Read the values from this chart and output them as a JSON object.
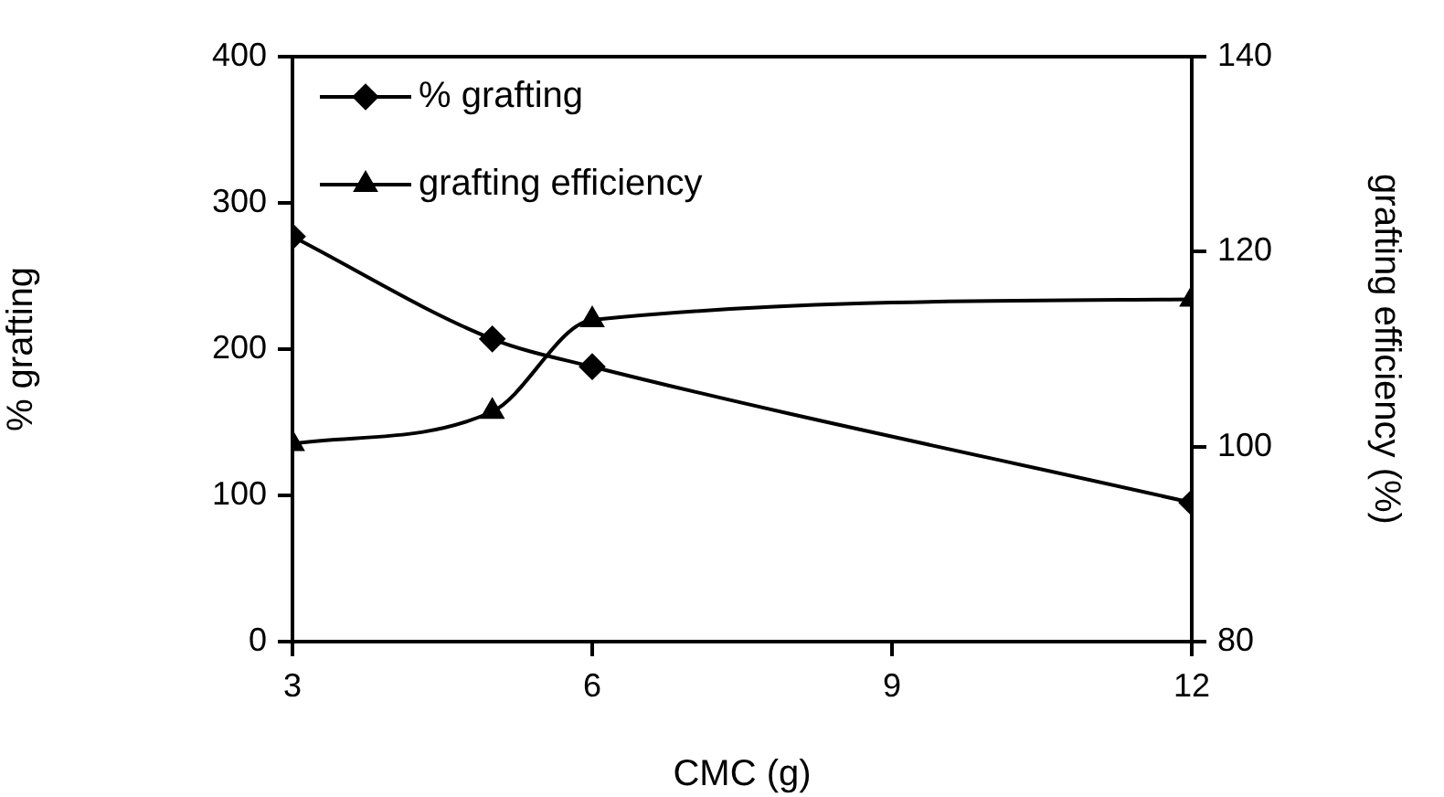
{
  "chart_data": {
    "type": "line",
    "xlabel": "CMC (g)",
    "ylabel": "% grafting",
    "y2label": "grafting efficiency (%)",
    "x": [
      3,
      5,
      6,
      12
    ],
    "series": [
      {
        "name": "% grafting",
        "color": "#000000",
        "marker": "diamond",
        "values": [
          277,
          207,
          188,
          95
        ]
      },
      {
        "name": "grafting efficiency",
        "color": "#000000",
        "marker": "triangle",
        "axis": "y2",
        "values": [
          100.3,
          103.6,
          113,
          115.1
        ]
      }
    ],
    "xlim": [
      3,
      12
    ],
    "xticks": [
      3,
      6,
      9,
      12
    ],
    "ylim": [
      0,
      400
    ],
    "yticks": [
      0,
      100,
      200,
      300,
      400
    ],
    "y2lim": [
      80,
      140
    ],
    "y2ticks": [
      80,
      100,
      120,
      140
    ],
    "grid": false,
    "legend": "top left"
  }
}
